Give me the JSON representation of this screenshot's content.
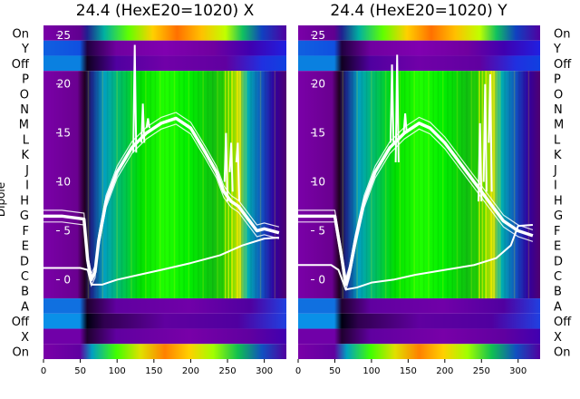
{
  "chart_data": [
    {
      "type": "heatmap",
      "title": "24.4 (HexE20=1020) X",
      "xlabel": "",
      "ylabel": "Dipole",
      "x_ticks": [
        0,
        50,
        100,
        150,
        200,
        250,
        300
      ],
      "xlim": [
        0,
        330
      ],
      "row_labels": [
        "On",
        "Y",
        "Off",
        "P",
        "O",
        "N",
        "M",
        "L",
        "K",
        "J",
        "I",
        "H",
        "G",
        "F",
        "E",
        "D",
        "C",
        "B",
        "A",
        "Off",
        "X",
        "On"
      ],
      "overlay_y_ticks": [
        0,
        5,
        10,
        15,
        20,
        25
      ],
      "overlay_ylim": [
        -2,
        26
      ],
      "overlay_series": [
        {
          "style": "main-envelope",
          "points": [
            [
              0,
              6.5
            ],
            [
              25,
              6.5
            ],
            [
              55,
              6.2
            ],
            [
              60,
              2
            ],
            [
              65,
              0
            ],
            [
              70,
              0.8
            ],
            [
              75,
              4
            ],
            [
              85,
              8
            ],
            [
              100,
              11
            ],
            [
              120,
              13.5
            ],
            [
              140,
              15
            ],
            [
              160,
              16
            ],
            [
              180,
              16.5
            ],
            [
              200,
              15.5
            ],
            [
              220,
              13
            ],
            [
              235,
              11
            ],
            [
              245,
              9
            ],
            [
              255,
              8
            ],
            [
              265,
              7.5
            ],
            [
              280,
              6
            ],
            [
              290,
              5
            ],
            [
              300,
              5.2
            ],
            [
              320,
              4.8
            ]
          ]
        },
        {
          "style": "baseline",
          "points": [
            [
              0,
              1.2
            ],
            [
              50,
              1.2
            ],
            [
              60,
              1
            ],
            [
              65,
              -0.5
            ],
            [
              80,
              -0.5
            ],
            [
              100,
              0
            ],
            [
              130,
              0.5
            ],
            [
              160,
              1
            ],
            [
              200,
              1.7
            ],
            [
              240,
              2.5
            ],
            [
              270,
              3.5
            ],
            [
              300,
              4.2
            ],
            [
              320,
              4.3
            ]
          ]
        },
        {
          "style": "spikes",
          "points": [
            [
              122,
              13
            ],
            [
              124,
              24
            ],
            [
              126,
              13
            ],
            [
              133,
              14
            ],
            [
              135,
              18
            ],
            [
              137,
              14
            ],
            [
              140,
              15.5
            ],
            [
              142,
              16.5
            ],
            [
              144,
              15.5
            ],
            [
              246,
              10
            ],
            [
              248,
              15
            ],
            [
              250,
              8
            ],
            [
              253,
              11
            ],
            [
              255,
              14
            ],
            [
              257,
              9
            ],
            [
              262,
              12
            ],
            [
              264,
              14
            ],
            [
              266,
              8
            ]
          ]
        }
      ]
    },
    {
      "type": "heatmap",
      "title": "24.4 (HexE20=1020) Y",
      "xlabel": "",
      "ylabel": "",
      "x_ticks": [
        0,
        50,
        100,
        150,
        200,
        250,
        300
      ],
      "xlim": [
        0,
        330
      ],
      "row_labels": [
        "On",
        "Y",
        "Off",
        "P",
        "O",
        "N",
        "M",
        "L",
        "K",
        "J",
        "I",
        "H",
        "G",
        "F",
        "E",
        "D",
        "C",
        "B",
        "A",
        "Off",
        "X",
        "On"
      ],
      "overlay_y_ticks": [
        0,
        5,
        10,
        15,
        20,
        25
      ],
      "overlay_ylim": [
        -2,
        26
      ],
      "overlay_series": [
        {
          "style": "main-envelope",
          "points": [
            [
              0,
              6.5
            ],
            [
              25,
              6.5
            ],
            [
              50,
              6.5
            ],
            [
              60,
              2
            ],
            [
              65,
              -0.5
            ],
            [
              70,
              0.8
            ],
            [
              78,
              4
            ],
            [
              90,
              8
            ],
            [
              105,
              11
            ],
            [
              125,
              13.5
            ],
            [
              145,
              15
            ],
            [
              165,
              16
            ],
            [
              180,
              15.5
            ],
            [
              200,
              14
            ],
            [
              220,
              12
            ],
            [
              235,
              10.5
            ],
            [
              250,
              9
            ],
            [
              265,
              7.5
            ],
            [
              280,
              6
            ],
            [
              300,
              5
            ],
            [
              320,
              4.5
            ]
          ]
        },
        {
          "style": "baseline",
          "points": [
            [
              0,
              1.5
            ],
            [
              45,
              1.5
            ],
            [
              55,
              1
            ],
            [
              65,
              -1
            ],
            [
              80,
              -0.8
            ],
            [
              100,
              -0.3
            ],
            [
              130,
              0
            ],
            [
              160,
              0.5
            ],
            [
              200,
              1
            ],
            [
              240,
              1.5
            ],
            [
              270,
              2.2
            ],
            [
              290,
              3.5
            ],
            [
              300,
              5.5
            ],
            [
              320,
              5.6
            ]
          ]
        },
        {
          "style": "spikes",
          "points": [
            [
              126,
              14
            ],
            [
              128,
              22
            ],
            [
              130,
              14
            ],
            [
              133,
              12
            ],
            [
              135,
              23
            ],
            [
              137,
              12
            ],
            [
              144,
              15
            ],
            [
              146,
              17
            ],
            [
              148,
              15
            ],
            [
              246,
              8
            ],
            [
              248,
              16
            ],
            [
              250,
              8
            ],
            [
              253,
              10
            ],
            [
              255,
              20
            ],
            [
              257,
              9
            ],
            [
              260,
              14
            ],
            [
              262,
              21
            ],
            [
              264,
              9
            ],
            [
              266,
              8
            ]
          ]
        }
      ]
    }
  ]
}
